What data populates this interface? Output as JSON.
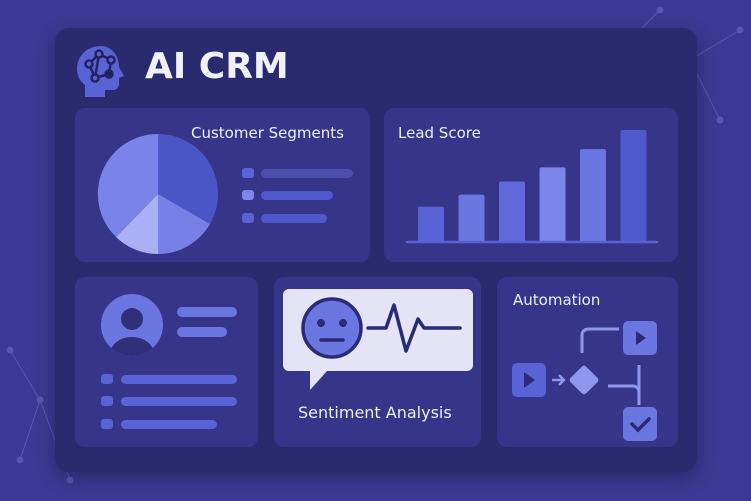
{
  "app": {
    "title": "AI CRM",
    "logo_icon": "brain-network-icon"
  },
  "colors": {
    "background": "#3a3a94",
    "panel": "#2a2a6f",
    "card": "#35358a",
    "accent": "#5a63d6",
    "light_accent": "#7c86ea"
  },
  "customer_segments": {
    "title": "Customer Segments"
  },
  "lead_score": {
    "title": "Lead Score"
  },
  "sentiment": {
    "title": "Sentiment Analysis",
    "icon": "neutral-face-icon"
  },
  "automation": {
    "title": "Automation"
  },
  "chart_data": {
    "type": "bar",
    "values": [
      35,
      47,
      60,
      74,
      92,
      111
    ],
    "title": "Lead Score"
  }
}
